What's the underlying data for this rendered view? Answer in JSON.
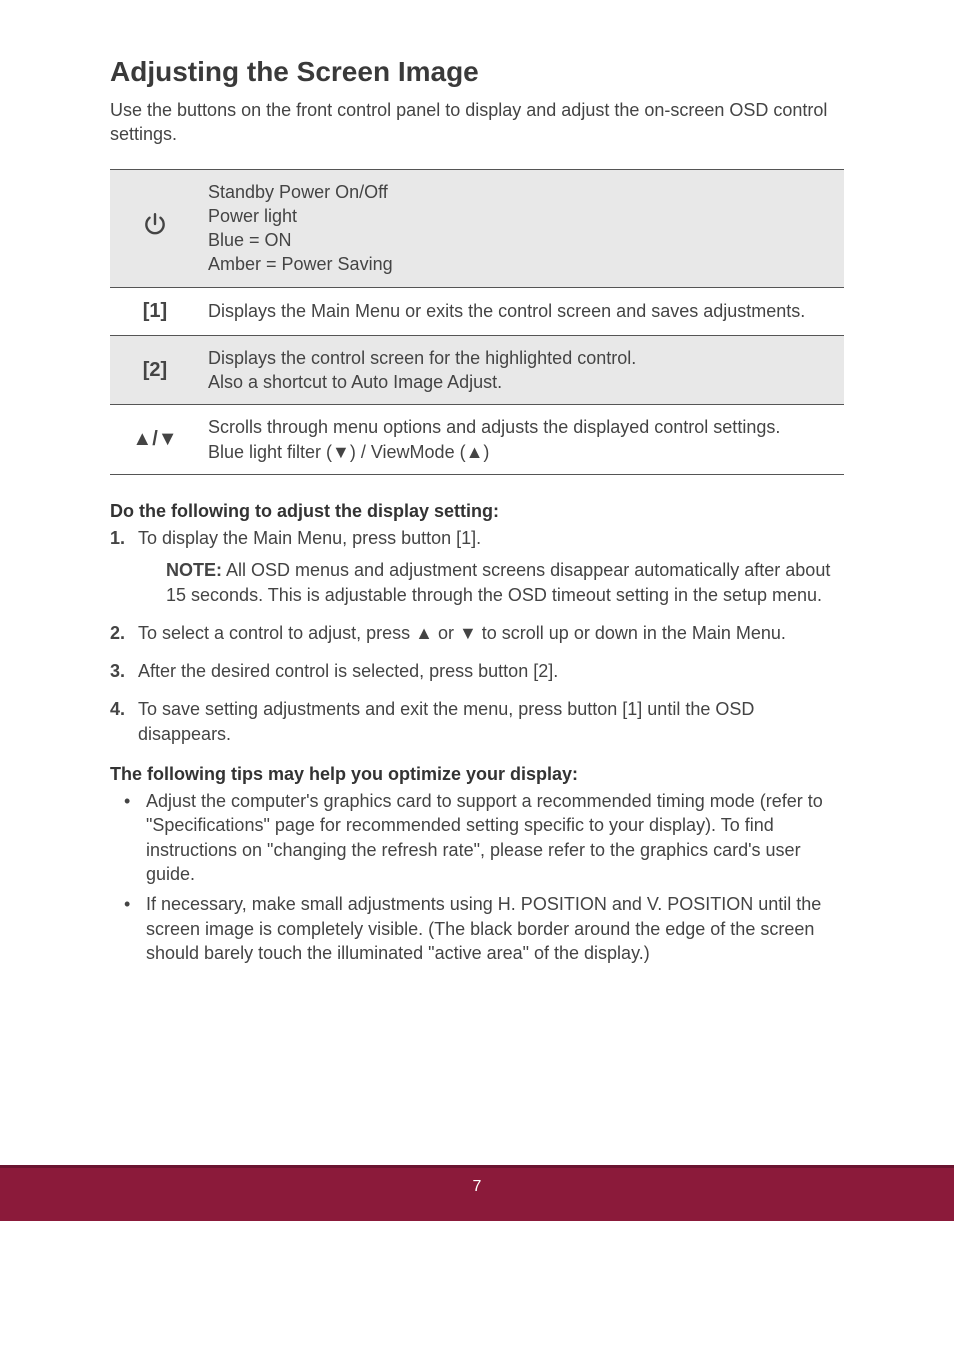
{
  "title": "Adjusting the Screen Image",
  "intro": "Use the buttons on the front control panel to display and adjust the on-screen OSD control settings.",
  "table": {
    "rows": [
      {
        "symbol_kind": "power",
        "symbol": "",
        "lines": [
          "Standby Power On/Off",
          "Power light",
          "Blue = ON",
          "Amber = Power Saving"
        ],
        "shaded": true
      },
      {
        "symbol_kind": "text",
        "symbol": "[1]",
        "lines": [
          "Displays the Main Menu or exits the control screen and saves adjustments."
        ],
        "shaded": false
      },
      {
        "symbol_kind": "text",
        "symbol": "[2]",
        "lines": [
          "Displays the control screen for the highlighted control.",
          "Also a shortcut to Auto Image Adjust."
        ],
        "shaded": true
      },
      {
        "symbol_kind": "text",
        "symbol": "▲/▼",
        "lines": [
          "Scrolls through menu options and adjusts the displayed control settings.",
          "Blue light filter (▼) / ViewMode  (▲)"
        ],
        "shaded": false
      }
    ]
  },
  "sub1": "Do the following to adjust the display setting:",
  "steps": {
    "s1": "To display the Main Menu, press button [1].",
    "note_label": "NOTE:",
    "note": " All OSD menus and adjustment screens disappear automatically after about 15 seconds. This is adjustable through the OSD timeout setting in the setup menu.",
    "s2": "To select a control to adjust, press ▲ or ▼ to scroll up or down in the Main Menu.",
    "s3": "After the desired control is selected, press button [2].",
    "s4": "To save setting adjustments and exit the menu, press button [1] until the OSD disappears."
  },
  "sub2": "The following tips may help you optimize your display:",
  "tips": {
    "t1": "Adjust the computer's graphics card to support a recommended timing mode (refer to \"Specifications\" page for recommended setting specific to your display). To find instructions on \"changing the refresh rate\", please refer to the graphics card's user guide.",
    "t2": "If necessary, make small adjustments using H. POSITION and V. POSITION until the screen image is completely visible. (The black border around the edge of the screen should barely touch the illuminated \"active area\" of the display.)"
  },
  "page_number": "7",
  "colors": {
    "footer_bg": "#8b1a3a",
    "footer_border": "#6a1430",
    "table_shade": "#e8e8e8",
    "rule": "#555555",
    "text": "#444444"
  }
}
